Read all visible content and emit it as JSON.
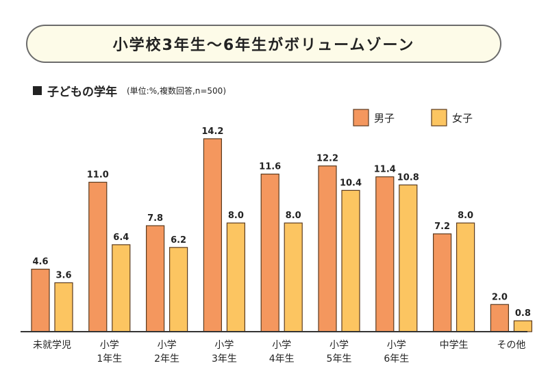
{
  "header": {
    "title": "小学校3年生～6年生がボリュームゾーン"
  },
  "subtitle": {
    "main": "子どもの学年",
    "note": "(単位:%,複数回答,n=500)"
  },
  "colors": {
    "male": "#f4975e",
    "female": "#fcc561",
    "bar_stroke": "#5a3a1e"
  },
  "chart_data": {
    "type": "bar",
    "categories": [
      [
        "未就学児"
      ],
      [
        "小学",
        "1年生"
      ],
      [
        "小学",
        "2年生"
      ],
      [
        "小学",
        "3年生"
      ],
      [
        "小学",
        "4年生"
      ],
      [
        "小学",
        "5年生"
      ],
      [
        "小学",
        "6年生"
      ],
      [
        "中学生"
      ],
      [
        "その他"
      ]
    ],
    "series": [
      {
        "name": "男子",
        "values": [
          4.6,
          11.0,
          7.8,
          14.2,
          11.6,
          12.2,
          11.4,
          7.2,
          2.0
        ]
      },
      {
        "name": "女子",
        "values": [
          3.6,
          6.4,
          6.2,
          8.0,
          8.0,
          10.4,
          10.8,
          8.0,
          0.8
        ]
      }
    ],
    "value_labels": [
      [
        "4.6",
        "11.0",
        "7.8",
        "14.2",
        "11.6",
        "12.2",
        "11.4",
        "7.2",
        "2.0"
      ],
      [
        "3.6",
        "6.4",
        "6.2",
        "8.0",
        "8.0",
        "10.4",
        "10.8",
        "8.0",
        "0.8"
      ]
    ],
    "ylim": [
      0,
      15
    ],
    "legend_position": "top-right",
    "grid": false
  }
}
